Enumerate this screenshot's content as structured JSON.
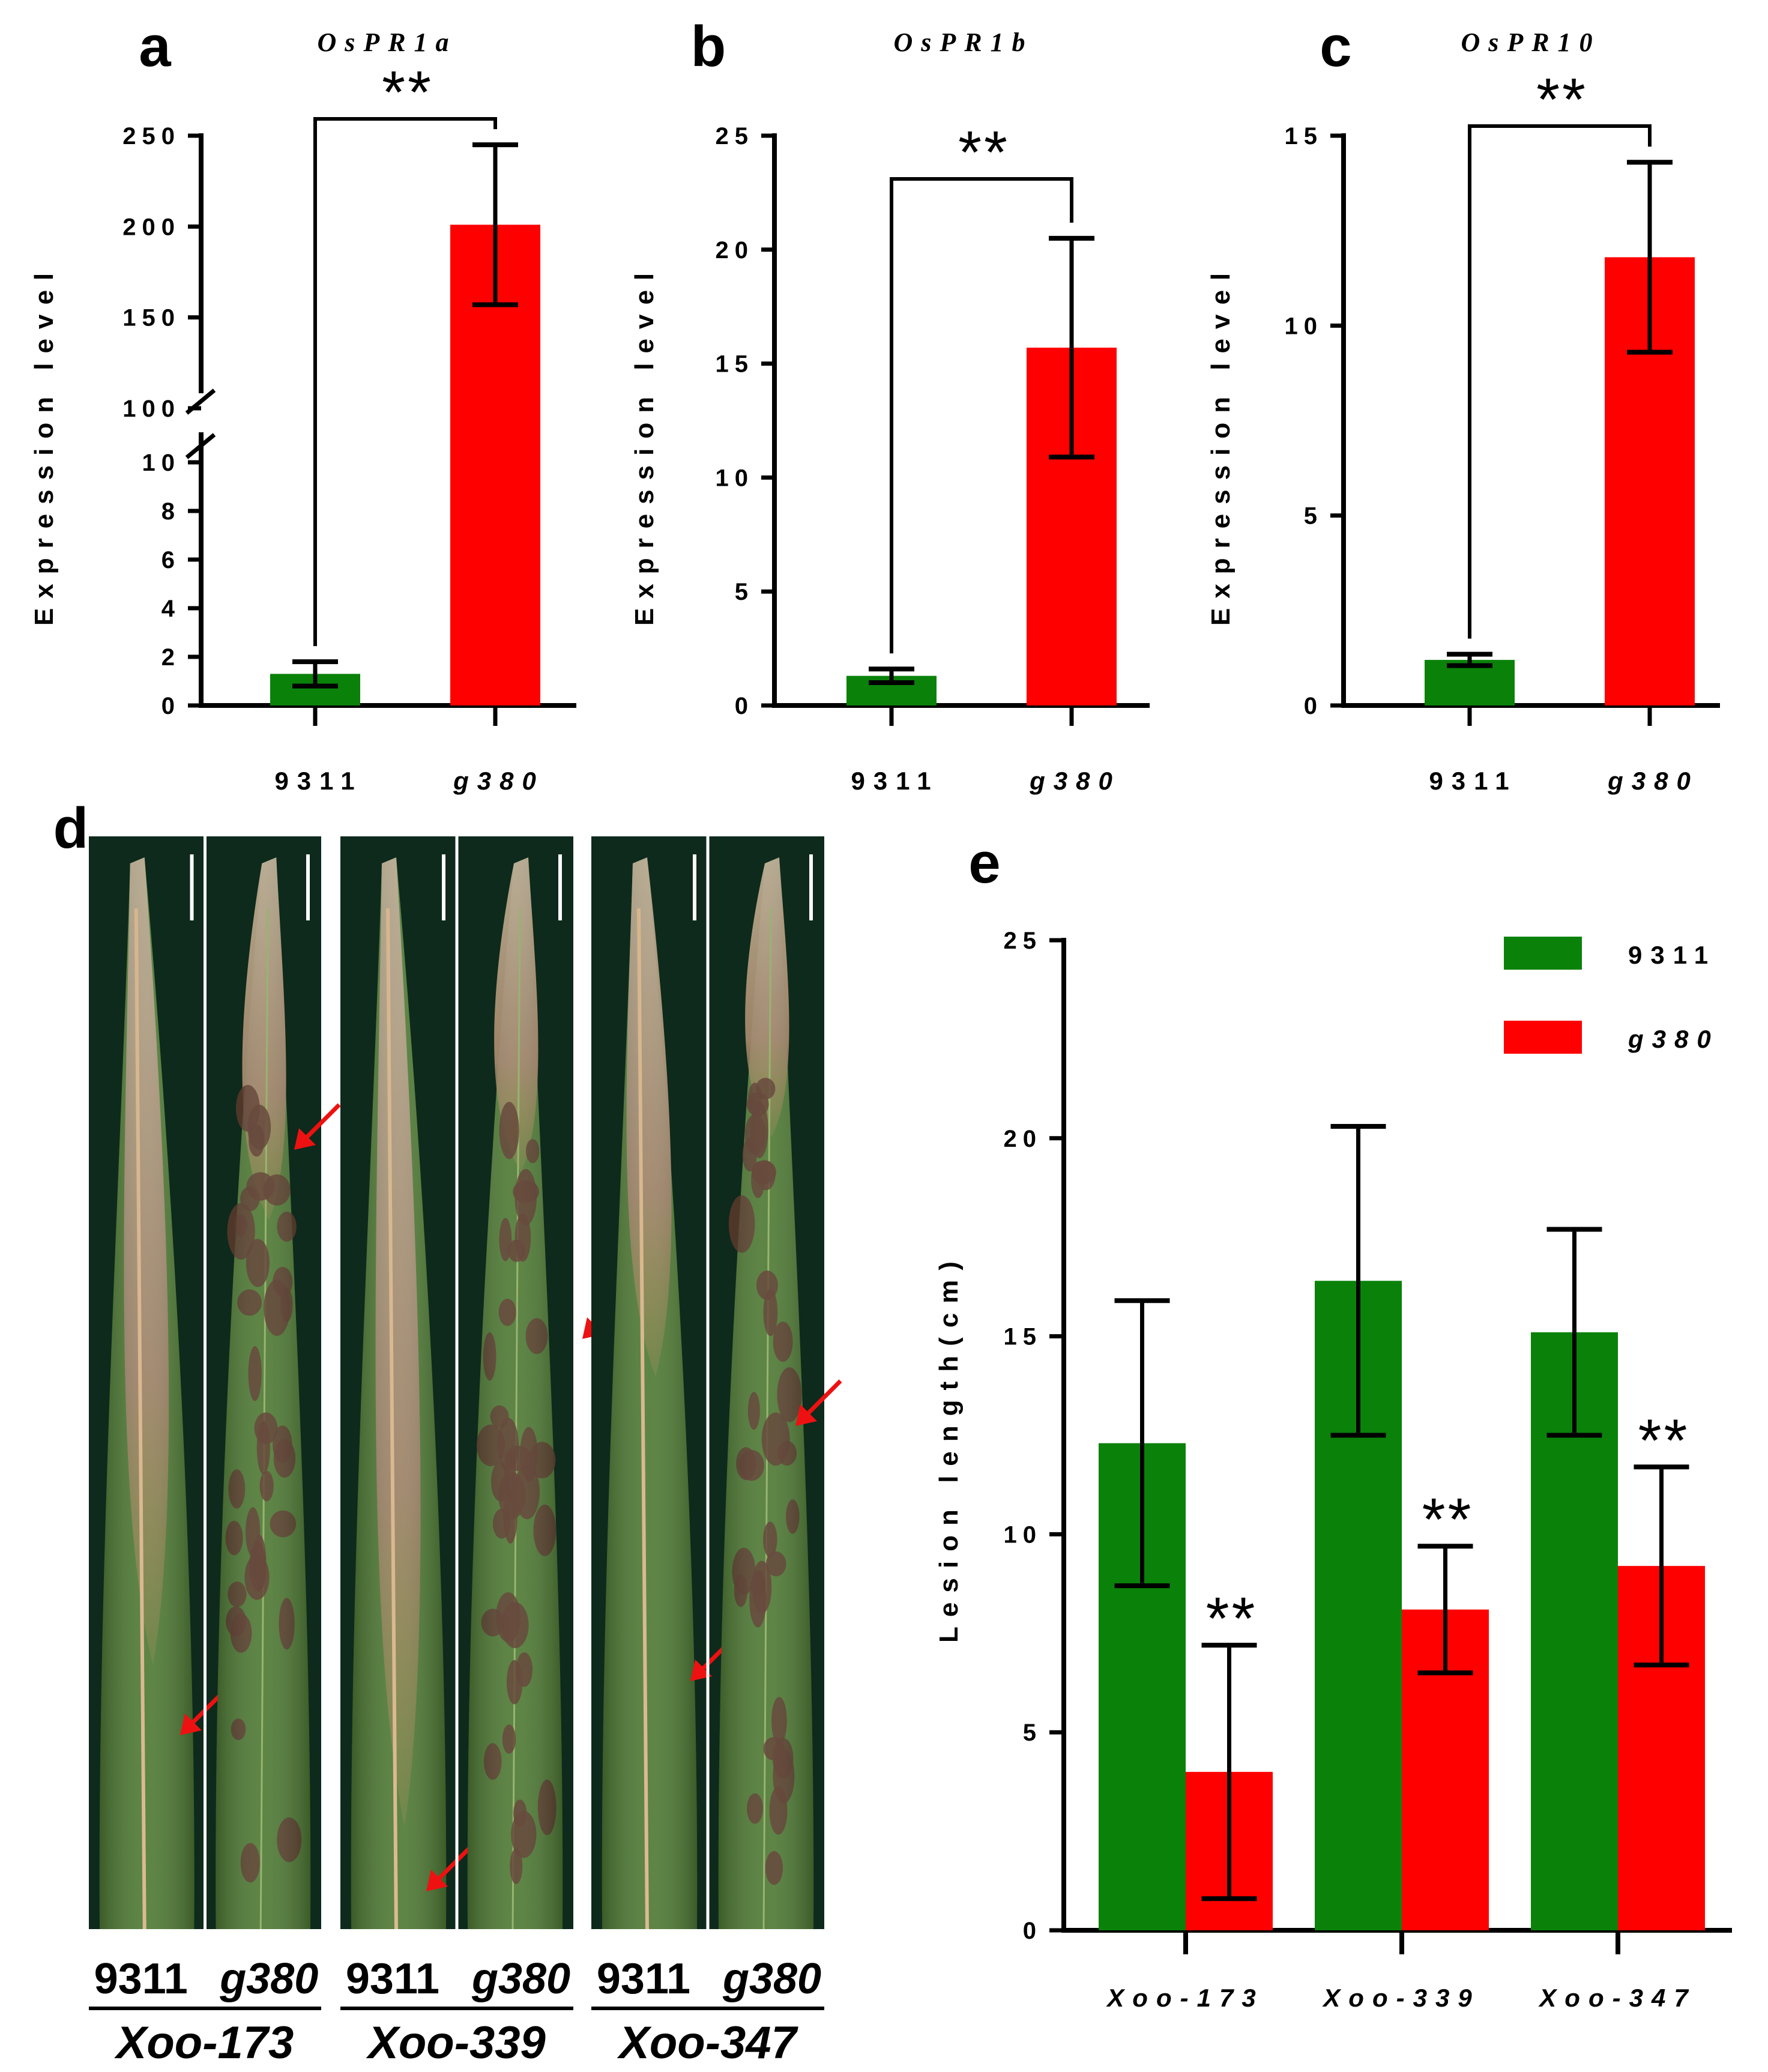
{
  "figure": {
    "panel_letters": [
      "a",
      "b",
      "c",
      "d",
      "e"
    ]
  },
  "colors": {
    "green": "#0a820a",
    "red": "#ff0000",
    "leaf_bg": "#0d2a1c",
    "leaf_green": "#4f7a35",
    "lesion_tan": "#a99a7d",
    "lesion_dark": "#5a3a2c",
    "arrow": "#ee1111"
  },
  "chart_data": [
    {
      "panel": "a",
      "type": "bar",
      "title": "OsPR1a",
      "ylabel": "Expression level",
      "categories": [
        "9311",
        "g380"
      ],
      "italic_categories": [
        false,
        true
      ],
      "values": [
        1.3,
        201
      ],
      "errors": [
        0.5,
        44
      ],
      "axis_break": true,
      "lower_ylim": [
        0,
        10
      ],
      "lower_ticks": [
        0,
        2,
        4,
        6,
        8,
        10
      ],
      "upper_ylim": [
        100,
        250
      ],
      "upper_ticks": [
        100,
        150,
        200,
        250
      ],
      "significance": "**"
    },
    {
      "panel": "b",
      "type": "bar",
      "title": "OsPR1b",
      "ylabel": "Expression level",
      "categories": [
        "9311",
        "g380"
      ],
      "italic_categories": [
        false,
        true
      ],
      "values": [
        1.3,
        15.7
      ],
      "errors": [
        0.3,
        4.8
      ],
      "ylim": [
        0,
        25
      ],
      "ticks": [
        0,
        5,
        10,
        15,
        20,
        25
      ],
      "significance": "**"
    },
    {
      "panel": "c",
      "type": "bar",
      "title": "OsPR10",
      "ylabel": "Expression level",
      "categories": [
        "9311",
        "g380"
      ],
      "italic_categories": [
        false,
        true
      ],
      "values": [
        1.2,
        11.8
      ],
      "errors": [
        0.15,
        2.5
      ],
      "ylim": [
        0,
        15
      ],
      "ticks": [
        0,
        5,
        10,
        15
      ],
      "significance": "**"
    },
    {
      "panel": "e",
      "type": "bar",
      "title": "",
      "ylabel": "Lesion length(cm)",
      "categories": [
        "Xoo-173",
        "Xoo-339",
        "Xoo-347"
      ],
      "ylim": [
        0,
        25
      ],
      "ticks": [
        0,
        5,
        10,
        15,
        20,
        25
      ],
      "series": [
        {
          "name": "9311",
          "italic": false,
          "values": [
            12.3,
            16.4,
            15.1
          ],
          "errors": [
            3.6,
            3.9,
            2.6
          ]
        },
        {
          "name": "g380",
          "italic": true,
          "values": [
            4.0,
            8.1,
            9.2
          ],
          "errors": [
            3.2,
            1.6,
            2.5
          ]
        }
      ],
      "significance": [
        "**",
        "**",
        "**"
      ],
      "legend": "top-right"
    }
  ],
  "panel_d": {
    "genotypes": [
      "9311",
      "g380"
    ],
    "genotype_italic": [
      false,
      true
    ],
    "strains": [
      "Xoo-173",
      "Xoo-339",
      "Xoo-347"
    ]
  }
}
